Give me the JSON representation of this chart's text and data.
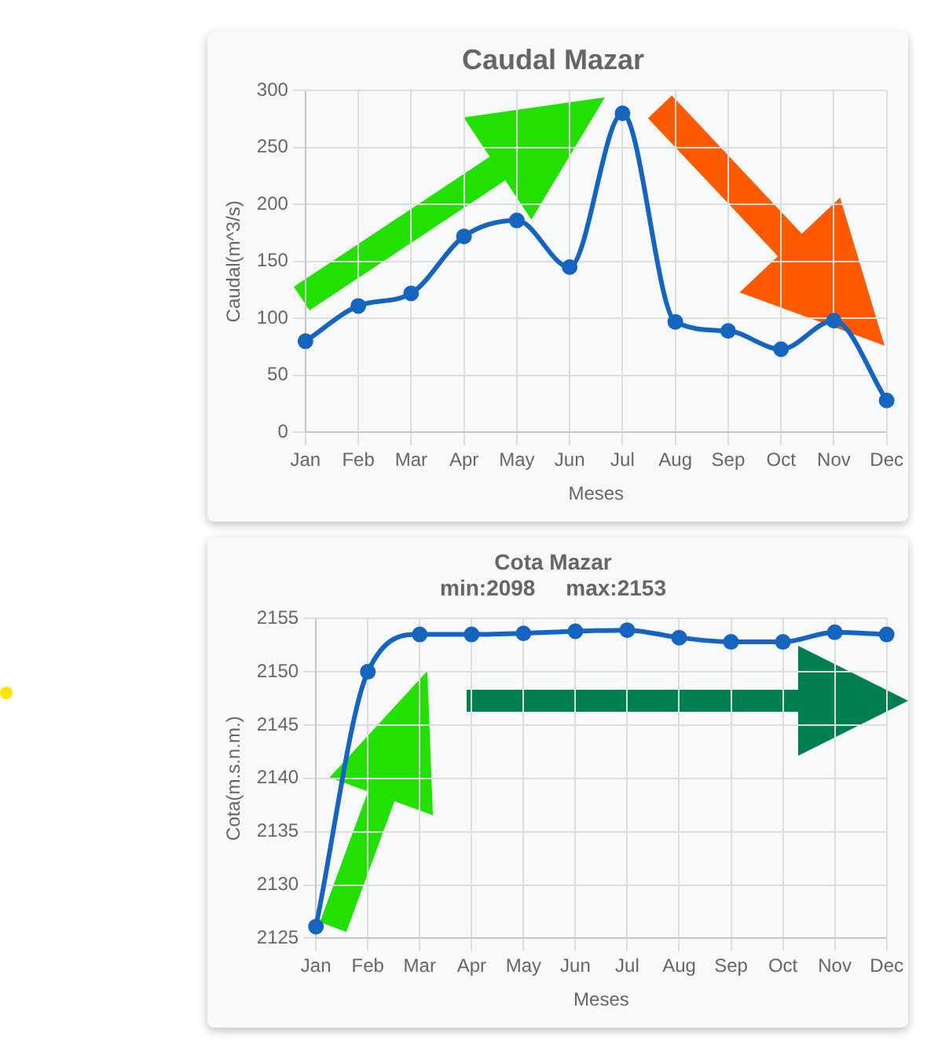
{
  "chart_data": [
    {
      "type": "line",
      "title": "Caudal Mazar",
      "xlabel": "Meses",
      "ylabel": "Caudal(m^3/s)",
      "categories": [
        "Jan",
        "Feb",
        "Mar",
        "Apr",
        "May",
        "Jun",
        "Jul",
        "Aug",
        "Sep",
        "Oct",
        "Nov",
        "Dec"
      ],
      "series": [
        {
          "color": "#1565c0",
          "values": [
            80,
            111,
            122,
            172,
            186,
            145,
            280,
            97,
            89,
            73,
            98,
            28
          ]
        }
      ],
      "ylim": [
        0,
        300
      ],
      "yticks": [
        0,
        50,
        100,
        150,
        200,
        250,
        300
      ],
      "grid": true,
      "marker": "circle"
    },
    {
      "type": "line",
      "title": "Cota Mazar",
      "subtitle": "min:2098     max:2153",
      "xlabel": "Meses",
      "ylabel": "Cota(m.s.n.m.)",
      "categories": [
        "Jan",
        "Feb",
        "Mar",
        "Apr",
        "May",
        "Jun",
        "Jul",
        "Aug",
        "Sep",
        "Oct",
        "Nov",
        "Dec"
      ],
      "series": [
        {
          "color": "#1565c0",
          "values": [
            2126.1,
            2150,
            2153.5,
            2153.5,
            2153.6,
            2153.8,
            2153.9,
            2153.2,
            2152.8,
            2152.8,
            2153.7,
            2153.5
          ]
        }
      ],
      "ylim": [
        2125,
        2155
      ],
      "yticks": [
        2125,
        2130,
        2135,
        2140,
        2145,
        2150,
        2155
      ],
      "grid": true,
      "marker": "circle"
    }
  ]
}
